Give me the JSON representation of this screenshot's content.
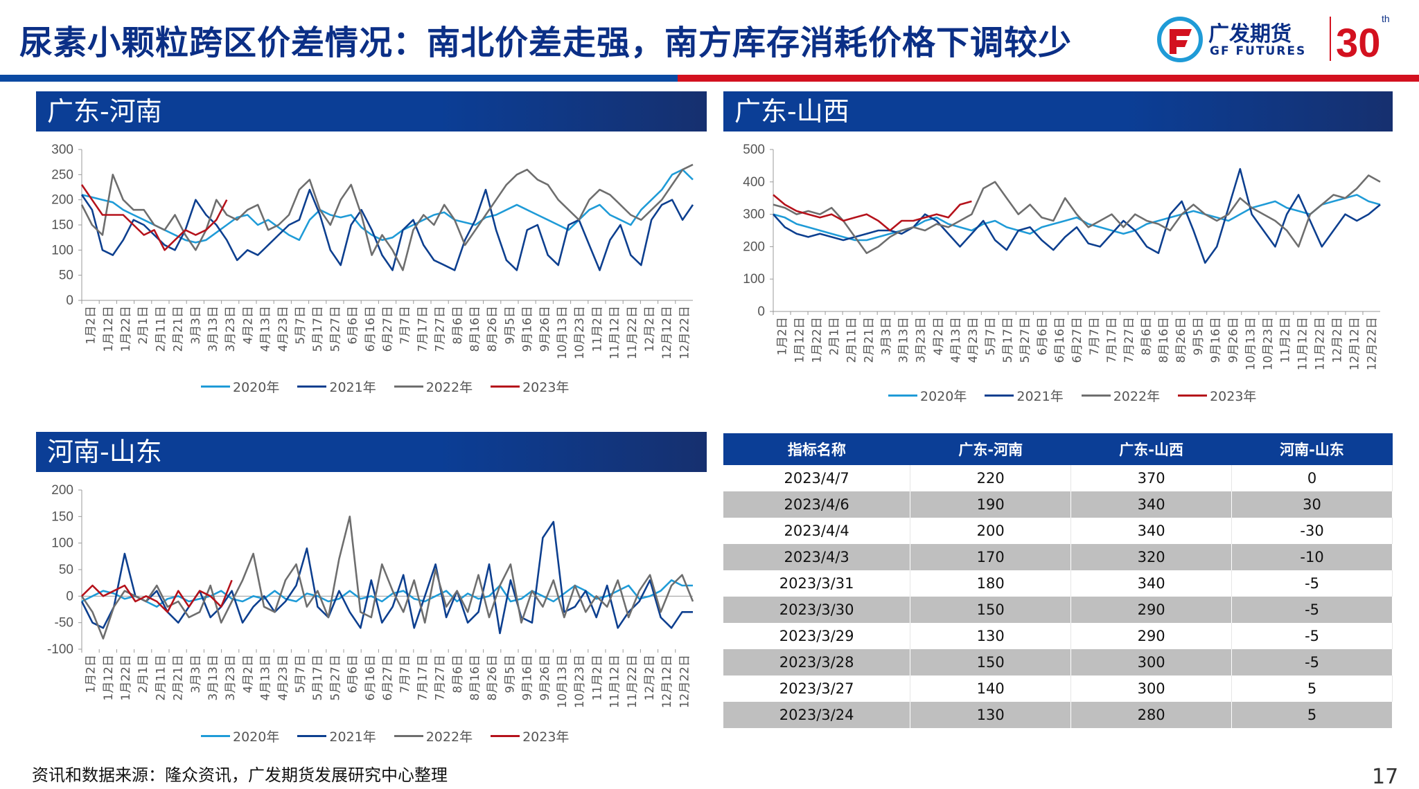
{
  "header": {
    "title": "尿素小颗粒跨区价差情况：南北价差走强，南方库存消耗价格下调较少",
    "logo_cn": "广发期货",
    "logo_en": "GF FUTURES",
    "logo_num": "30",
    "logo_th": "th",
    "colors": {
      "navy": "#0b2f86",
      "blue": "#0b4aa2",
      "red": "#d3111f"
    }
  },
  "colors": {
    "2020": "#1f9bd7",
    "2021": "#0d3f8f",
    "2022": "#6e6e6e",
    "2023": "#b5121b"
  },
  "legend": [
    "2020年",
    "2021年",
    "2022年",
    "2023年"
  ],
  "x_labels": [
    "1月2日",
    "1月12日",
    "1月22日",
    "2月1日",
    "2月11日",
    "2月21日",
    "3月3日",
    "3月13日",
    "3月23日",
    "4月2日",
    "4月13日",
    "4月23日",
    "5月7日",
    "5月17日",
    "5月27日",
    "6月6日",
    "6月16日",
    "6月27日",
    "7月7日",
    "7月17日",
    "7月27日",
    "8月6日",
    "8月16日",
    "8月26日",
    "9月5日",
    "9月16日",
    "9月26日",
    "10月13日",
    "10月23日",
    "11月2日",
    "11月12日",
    "11月22日",
    "12月2日",
    "12月12日",
    "12月22日"
  ],
  "x_labels_sx": [
    "1月2日",
    "1月12日",
    "1月22日",
    "2月1日",
    "2月11日",
    "2月21日",
    "3月3日",
    "3月13日",
    "3月23日",
    "4月2日",
    "4月13日",
    "4月23日",
    "5月7日",
    "5月17日",
    "5月27日",
    "6月6日",
    "6月16日",
    "6月27日",
    "7月7日",
    "7月17日",
    "7月27日",
    "8月6日",
    "8月16日",
    "8月26日",
    "9月5日",
    "9月16日",
    "9月26日",
    "10月13日",
    "10月23日",
    "11月2日",
    "11月12日",
    "11月22日",
    "12月2日",
    "12月12日",
    "12月22日"
  ],
  "chart_data": [
    {
      "type": "line",
      "title": "广东-河南",
      "ylim": [
        0,
        300
      ],
      "yticks": [
        0,
        50,
        100,
        150,
        200,
        250,
        300
      ],
      "series": [
        {
          "name": "2020年",
          "values": [
            210,
            205,
            200,
            195,
            180,
            170,
            160,
            150,
            140,
            130,
            120,
            115,
            120,
            135,
            150,
            165,
            170,
            150,
            160,
            145,
            130,
            120,
            160,
            180,
            170,
            165,
            170,
            145,
            130,
            120,
            125,
            140,
            150,
            160,
            170,
            175,
            160,
            155,
            150,
            165,
            170,
            180,
            190,
            180,
            170,
            160,
            150,
            140,
            160,
            180,
            190,
            170,
            160,
            150,
            180,
            200,
            220,
            250,
            260,
            240
          ]
        },
        {
          "name": "2021年",
          "values": [
            210,
            180,
            100,
            90,
            120,
            160,
            150,
            130,
            110,
            100,
            140,
            200,
            170,
            150,
            120,
            80,
            100,
            90,
            110,
            130,
            150,
            160,
            220,
            170,
            100,
            70,
            150,
            180,
            140,
            90,
            60,
            140,
            160,
            110,
            80,
            70,
            60,
            120,
            160,
            220,
            140,
            80,
            60,
            140,
            150,
            90,
            70,
            150,
            160,
            110,
            60,
            120,
            150,
            90,
            70,
            160,
            190,
            200,
            160,
            190
          ]
        },
        {
          "name": "2022年",
          "values": [
            190,
            150,
            130,
            250,
            200,
            180,
            180,
            150,
            140,
            170,
            130,
            100,
            140,
            200,
            170,
            160,
            180,
            190,
            140,
            150,
            170,
            220,
            240,
            180,
            150,
            200,
            230,
            170,
            90,
            130,
            100,
            60,
            140,
            170,
            150,
            190,
            160,
            110,
            140,
            170,
            200,
            230,
            250,
            260,
            240,
            230,
            200,
            180,
            160,
            200,
            220,
            210,
            190,
            170,
            160,
            180,
            200,
            230,
            260,
            270
          ]
        },
        {
          "name": "2023年",
          "values": [
            230,
            200,
            170,
            170,
            170,
            150,
            130,
            140,
            100,
            120,
            140,
            130,
            140,
            160,
            200
          ]
        }
      ]
    },
    {
      "type": "line",
      "title": "广东-山西",
      "ylim": [
        0,
        500
      ],
      "yticks": [
        0,
        100,
        200,
        300,
        400,
        500
      ],
      "series": [
        {
          "name": "2020年",
          "values": [
            300,
            290,
            270,
            260,
            250,
            240,
            230,
            220,
            220,
            230,
            240,
            250,
            260,
            280,
            290,
            270,
            260,
            250,
            270,
            280,
            260,
            250,
            240,
            260,
            270,
            280,
            290,
            270,
            260,
            250,
            240,
            250,
            270,
            280,
            290,
            300,
            310,
            300,
            290,
            280,
            300,
            320,
            330,
            340,
            320,
            310,
            300,
            330,
            340,
            350,
            360,
            340,
            330
          ]
        },
        {
          "name": "2021年",
          "values": [
            300,
            260,
            240,
            230,
            240,
            230,
            220,
            230,
            240,
            250,
            250,
            240,
            260,
            300,
            280,
            240,
            200,
            240,
            280,
            220,
            190,
            250,
            260,
            220,
            190,
            230,
            260,
            210,
            200,
            240,
            280,
            250,
            200,
            180,
            300,
            340,
            250,
            150,
            200,
            320,
            440,
            300,
            250,
            200,
            300,
            360,
            280,
            200,
            250,
            300,
            280,
            300,
            330
          ]
        },
        {
          "name": "2022年",
          "values": [
            330,
            320,
            300,
            310,
            300,
            320,
            280,
            230,
            180,
            200,
            230,
            250,
            260,
            250,
            270,
            260,
            280,
            300,
            380,
            400,
            350,
            300,
            330,
            290,
            280,
            350,
            300,
            260,
            280,
            300,
            260,
            300,
            280,
            270,
            250,
            300,
            330,
            300,
            280,
            300,
            350,
            320,
            300,
            280,
            250,
            200,
            300,
            330,
            360,
            350,
            380,
            420,
            400
          ]
        },
        {
          "name": "2023年",
          "values": [
            360,
            330,
            310,
            300,
            290,
            300,
            280,
            290,
            300,
            280,
            250,
            280,
            280,
            290,
            300,
            290,
            330,
            340
          ]
        }
      ]
    },
    {
      "type": "line",
      "title": "河南-山东",
      "ylim": [
        -100,
        200
      ],
      "yticks": [
        -100,
        -50,
        0,
        50,
        100,
        150,
        200
      ],
      "series": [
        {
          "name": "2020年",
          "values": [
            -10,
            0,
            10,
            5,
            -5,
            0,
            -10,
            -20,
            -5,
            0,
            -10,
            -5,
            0,
            10,
            -5,
            -10,
            0,
            -5,
            10,
            -5,
            -10,
            5,
            0,
            -10,
            -5,
            10,
            -5,
            0,
            -10,
            5,
            10,
            -5,
            -10,
            0,
            10,
            -10,
            5,
            -5,
            0,
            20,
            -10,
            -5,
            10,
            0,
            -10,
            5,
            20,
            10,
            -5,
            0,
            10,
            20,
            -5,
            0,
            10,
            30,
            20,
            20
          ]
        },
        {
          "name": "2021年",
          "values": [
            -10,
            -50,
            -60,
            -20,
            80,
            0,
            -10,
            10,
            -30,
            -50,
            -20,
            10,
            -40,
            -20,
            10,
            -50,
            -20,
            0,
            -30,
            -10,
            20,
            90,
            -20,
            -40,
            10,
            -30,
            -60,
            30,
            -50,
            -20,
            40,
            -60,
            0,
            60,
            -40,
            10,
            -50,
            -30,
            60,
            -70,
            30,
            -40,
            -50,
            110,
            140,
            -30,
            -20,
            10,
            -40,
            20,
            -60,
            -30,
            -10,
            30,
            -40,
            -60,
            -30,
            -30
          ]
        },
        {
          "name": "2022年",
          "values": [
            0,
            -30,
            -80,
            -20,
            10,
            0,
            -10,
            20,
            -20,
            -10,
            -40,
            -30,
            20,
            -50,
            -10,
            30,
            80,
            -20,
            -30,
            30,
            60,
            -20,
            10,
            -40,
            70,
            150,
            -30,
            -40,
            60,
            10,
            -30,
            30,
            -50,
            50,
            -20,
            10,
            -30,
            40,
            -40,
            20,
            60,
            -50,
            10,
            -20,
            30,
            -40,
            20,
            -30,
            0,
            -20,
            30,
            -40,
            10,
            40,
            -30,
            20,
            40,
            -10
          ]
        },
        {
          "name": "2023年",
          "values": [
            0,
            20,
            0,
            10,
            20,
            -10,
            0,
            -10,
            -30,
            10,
            -20,
            10,
            0,
            -20,
            30
          ]
        }
      ]
    }
  ],
  "table": {
    "headers": [
      "指标名称",
      "广东-河南",
      "广东-山西",
      "河南-山东"
    ],
    "rows": [
      [
        "2023/4/7",
        "220",
        "370",
        "0"
      ],
      [
        "2023/4/6",
        "190",
        "340",
        "30"
      ],
      [
        "2023/4/4",
        "200",
        "340",
        "-30"
      ],
      [
        "2023/4/3",
        "170",
        "320",
        "-10"
      ],
      [
        "2023/3/31",
        "180",
        "340",
        "-5"
      ],
      [
        "2023/3/30",
        "150",
        "290",
        "-5"
      ],
      [
        "2023/3/29",
        "130",
        "290",
        "-5"
      ],
      [
        "2023/3/28",
        "150",
        "300",
        "-5"
      ],
      [
        "2023/3/27",
        "140",
        "300",
        "5"
      ],
      [
        "2023/3/24",
        "130",
        "280",
        "5"
      ]
    ]
  },
  "footer": {
    "source": "资讯和数据来源：隆众资讯，广发期货发展研究中心整理",
    "page": "17"
  }
}
